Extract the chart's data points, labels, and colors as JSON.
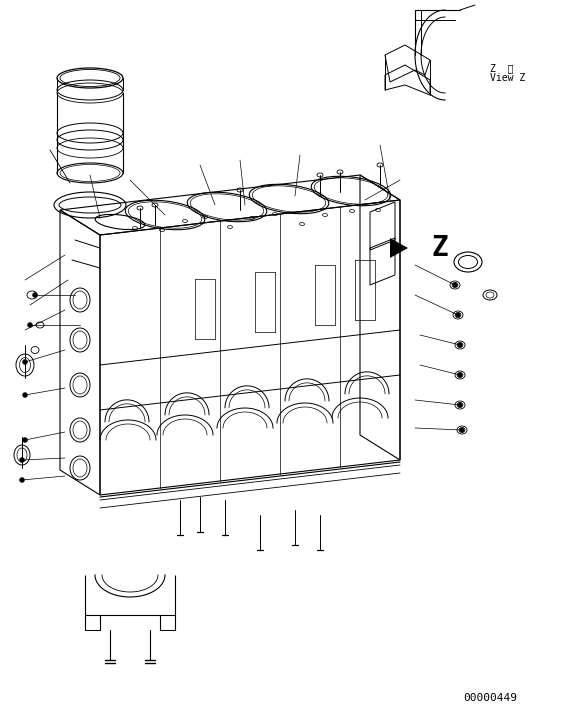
{
  "background_color": "#ffffff",
  "line_color": "#000000",
  "figsize": [
    5.77,
    7.12
  ],
  "dpi": 100,
  "part_number": "00000449",
  "view_label_en": "View Z",
  "view_label_jp": "Z  視",
  "view_z_label": "Z"
}
